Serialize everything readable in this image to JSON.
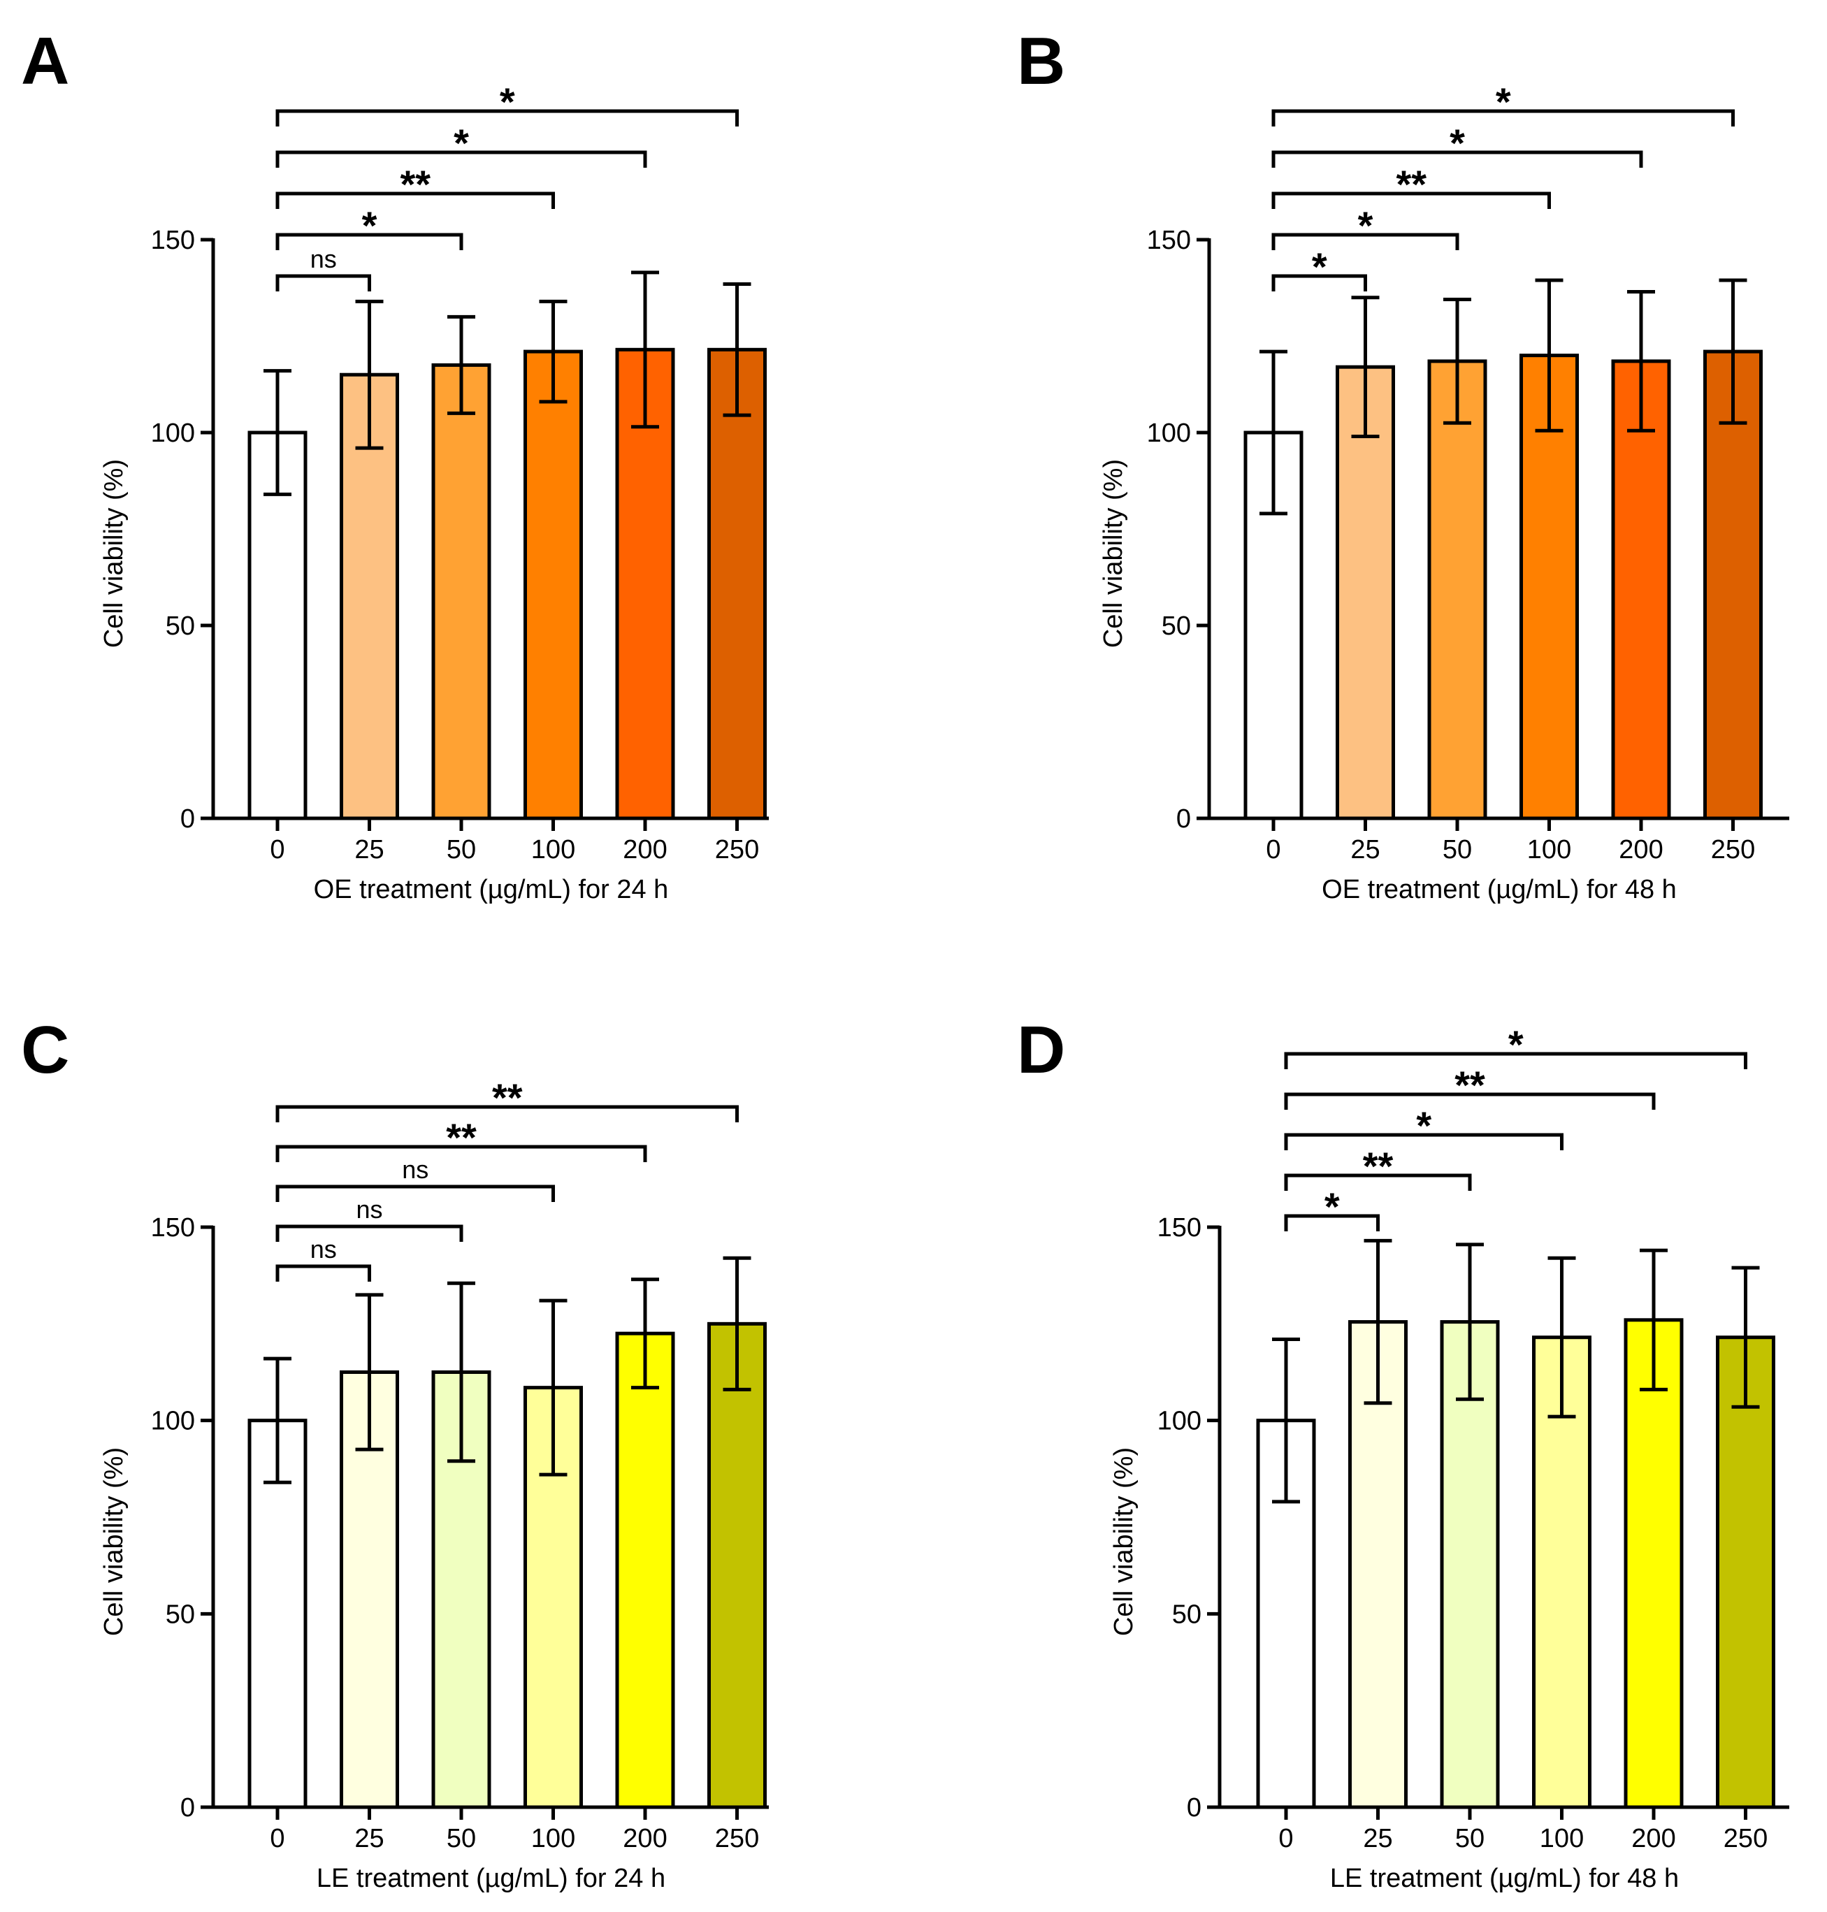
{
  "chart_data": [
    {
      "panel": "A",
      "type": "bar",
      "categories": [
        "0",
        "25",
        "50",
        "100",
        "200",
        "250"
      ],
      "values": [
        100,
        115,
        117.5,
        121,
        121.5,
        121.5
      ],
      "errors": [
        16,
        19,
        12.5,
        13,
        20,
        17
      ],
      "colors": [
        "#ffffff",
        "#fdc182",
        "#ffa233",
        "#ff8000",
        "#ff6200",
        "#dd6000"
      ],
      "xlabel": "OE treatment (µg/mL) for 24 h",
      "ylabel": "Cell viability (%)",
      "ylim": [
        0,
        150
      ],
      "yticks": [
        0,
        50,
        100,
        150
      ],
      "comparisons": [
        {
          "from": "0",
          "to": "25",
          "label": "ns"
        },
        {
          "from": "0",
          "to": "50",
          "label": "*"
        },
        {
          "from": "0",
          "to": "100",
          "label": "**"
        },
        {
          "from": "0",
          "to": "200",
          "label": "*"
        },
        {
          "from": "0",
          "to": "250",
          "label": "*"
        }
      ]
    },
    {
      "panel": "B",
      "type": "bar",
      "categories": [
        "0",
        "25",
        "50",
        "100",
        "200",
        "250"
      ],
      "values": [
        100,
        117,
        118.5,
        120,
        118.5,
        121
      ],
      "errors": [
        21,
        18,
        16,
        19.5,
        18,
        18.5
      ],
      "colors": [
        "#ffffff",
        "#fdc182",
        "#ffa233",
        "#ff8000",
        "#ff6200",
        "#dd6000"
      ],
      "xlabel": "OE treatment (µg/mL) for 48 h",
      "ylabel": "Cell viability (%)",
      "ylim": [
        0,
        150
      ],
      "yticks": [
        0,
        50,
        100,
        150
      ],
      "comparisons": [
        {
          "from": "0",
          "to": "25",
          "label": "*"
        },
        {
          "from": "0",
          "to": "50",
          "label": "*"
        },
        {
          "from": "0",
          "to": "100",
          "label": "**"
        },
        {
          "from": "0",
          "to": "200",
          "label": "*"
        },
        {
          "from": "0",
          "to": "250",
          "label": "*"
        }
      ]
    },
    {
      "panel": "C",
      "type": "bar",
      "categories": [
        "0",
        "25",
        "50",
        "100",
        "200",
        "250"
      ],
      "values": [
        100,
        112.5,
        112.5,
        108.5,
        122.5,
        125
      ],
      "errors": [
        16,
        20,
        23,
        22.5,
        14,
        17
      ],
      "colors": [
        "#ffffff",
        "#ffffe0",
        "#f0ffc0",
        "#ffff99",
        "#ffff00",
        "#c2c200"
      ],
      "xlabel": "LE treatment (µg/mL) for 24 h",
      "ylabel": "Cell viability (%)",
      "ylim": [
        0,
        150
      ],
      "yticks": [
        0,
        50,
        100,
        150
      ],
      "comparisons": [
        {
          "from": "0",
          "to": "25",
          "label": "ns"
        },
        {
          "from": "0",
          "to": "50",
          "label": "ns"
        },
        {
          "from": "0",
          "to": "100",
          "label": "ns"
        },
        {
          "from": "0",
          "to": "200",
          "label": "**"
        },
        {
          "from": "0",
          "to": "250",
          "label": "**"
        }
      ]
    },
    {
      "panel": "D",
      "type": "bar",
      "categories": [
        "0",
        "25",
        "50",
        "100",
        "200",
        "250"
      ],
      "values": [
        100,
        125.5,
        125.5,
        121.5,
        126,
        121.5
      ],
      "errors": [
        21,
        21,
        20,
        20.5,
        18,
        18
      ],
      "colors": [
        "#ffffff",
        "#ffffe0",
        "#f0ffc0",
        "#ffff99",
        "#ffff00",
        "#c2c200"
      ],
      "xlabel": "LE treatment (µg/mL) for 48 h",
      "ylabel": "Cell viability (%)",
      "ylim": [
        0,
        150
      ],
      "yticks": [
        0,
        50,
        100,
        150
      ],
      "comparisons": [
        {
          "from": "0",
          "to": "25",
          "label": "*"
        },
        {
          "from": "0",
          "to": "50",
          "label": "**"
        },
        {
          "from": "0",
          "to": "100",
          "label": "*"
        },
        {
          "from": "0",
          "to": "200",
          "label": "**"
        },
        {
          "from": "0",
          "to": "250",
          "label": "*"
        }
      ]
    }
  ]
}
